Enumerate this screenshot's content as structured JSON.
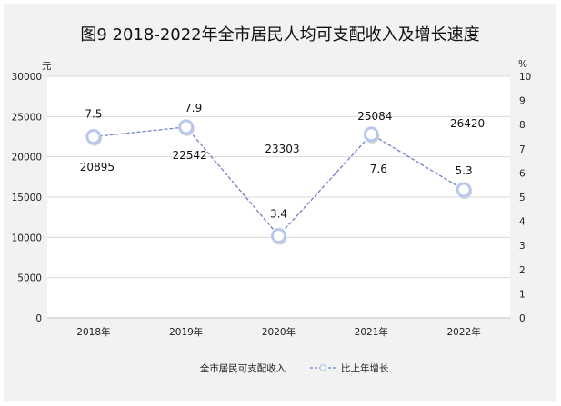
{
  "chart_data": {
    "type": "line",
    "title": "图9  2018-2022年全市居民人均可支配收入及增长速度",
    "categories": [
      "2018年",
      "2019年",
      "2020年",
      "2021年",
      "2022年"
    ],
    "y_left": {
      "unit": "元",
      "range": [
        0,
        30000
      ],
      "ticks": [
        "0",
        "5000",
        "10000",
        "15000",
        "20000",
        "25000",
        "30000"
      ]
    },
    "y_right": {
      "unit": "%",
      "range": [
        0,
        10
      ],
      "ticks": [
        "0",
        "1",
        "2",
        "3",
        "4",
        "5",
        "6",
        "7",
        "8",
        "9",
        "10"
      ]
    },
    "series": [
      {
        "name": "全市居民可支配收入",
        "axis": "left",
        "values": [
          20895,
          22542,
          23303,
          25084,
          26420
        ],
        "labels": [
          "20895",
          "22542",
          "23303",
          "25084",
          "26420"
        ]
      },
      {
        "name": "比上年增长",
        "axis": "right",
        "values": [
          7.5,
          7.9,
          3.4,
          7.6,
          5.3
        ],
        "labels": [
          "7.5",
          "7.9",
          "3.4",
          "7.6",
          "5.3"
        ]
      }
    ],
    "grid": true,
    "legend_position": "bottom",
    "colors": {
      "growth_line": "#6f7fc8",
      "marker_fill": "#ffffff",
      "marker_stroke": "#b8c7ec",
      "grid": "#d9d9d9",
      "axis": "#bfbfbf",
      "background": "#f2f2f2",
      "plot": "#ffffff"
    }
  }
}
